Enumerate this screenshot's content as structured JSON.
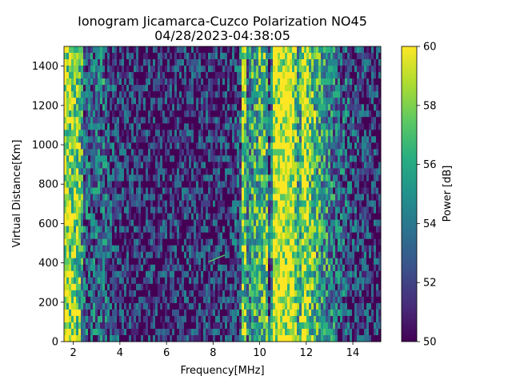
{
  "chart_data": {
    "type": "heatmap",
    "title_line1": "Ionogram Jicamarca-Cuzco Polarization NO45",
    "title_line2": "04/28/2023-04:38:05",
    "xlabel": "Frequency[MHz]",
    "ylabel": "Virtual Distance[Km]",
    "colorbar_label": "Power [dB]",
    "xlim": [
      1.6,
      15.2
    ],
    "ylim": [
      0,
      1500
    ],
    "clim": [
      50,
      60
    ],
    "colormap": "viridis",
    "x_ticks": [
      2,
      4,
      6,
      8,
      10,
      12,
      14
    ],
    "y_ticks": [
      0,
      200,
      400,
      600,
      800,
      1000,
      1200,
      1400
    ],
    "colorbar_ticks": [
      50,
      52,
      54,
      56,
      58,
      60
    ],
    "frequency_profile_db": [
      {
        "f": 1.6,
        "level": 59
      },
      {
        "f": 2.0,
        "level": 58
      },
      {
        "f": 2.3,
        "level": 57
      },
      {
        "f": 2.5,
        "level": 53
      },
      {
        "f": 3.0,
        "level": 53
      },
      {
        "f": 3.3,
        "level": 54
      },
      {
        "f": 3.6,
        "level": 52
      },
      {
        "f": 5.0,
        "level": 51
      },
      {
        "f": 7.5,
        "level": 51
      },
      {
        "f": 8.8,
        "level": 51.5
      },
      {
        "f": 9.2,
        "level": 53
      },
      {
        "f": 9.3,
        "level": 60
      },
      {
        "f": 9.45,
        "level": 54
      },
      {
        "f": 9.8,
        "level": 56
      },
      {
        "f": 10.3,
        "level": 57
      },
      {
        "f": 10.45,
        "level": 51
      },
      {
        "f": 10.6,
        "level": 60
      },
      {
        "f": 11.4,
        "level": 60
      },
      {
        "f": 11.7,
        "level": 55
      },
      {
        "f": 11.9,
        "level": 60
      },
      {
        "f": 12.2,
        "level": 57
      },
      {
        "f": 12.8,
        "level": 55
      },
      {
        "f": 13.5,
        "level": 53
      },
      {
        "f": 14.2,
        "level": 52
      },
      {
        "f": 15.2,
        "level": 51
      }
    ],
    "trace": {
      "f_start": 7.8,
      "f_end": 8.5,
      "d_start": 405,
      "d_end": 440,
      "level": 57
    }
  }
}
